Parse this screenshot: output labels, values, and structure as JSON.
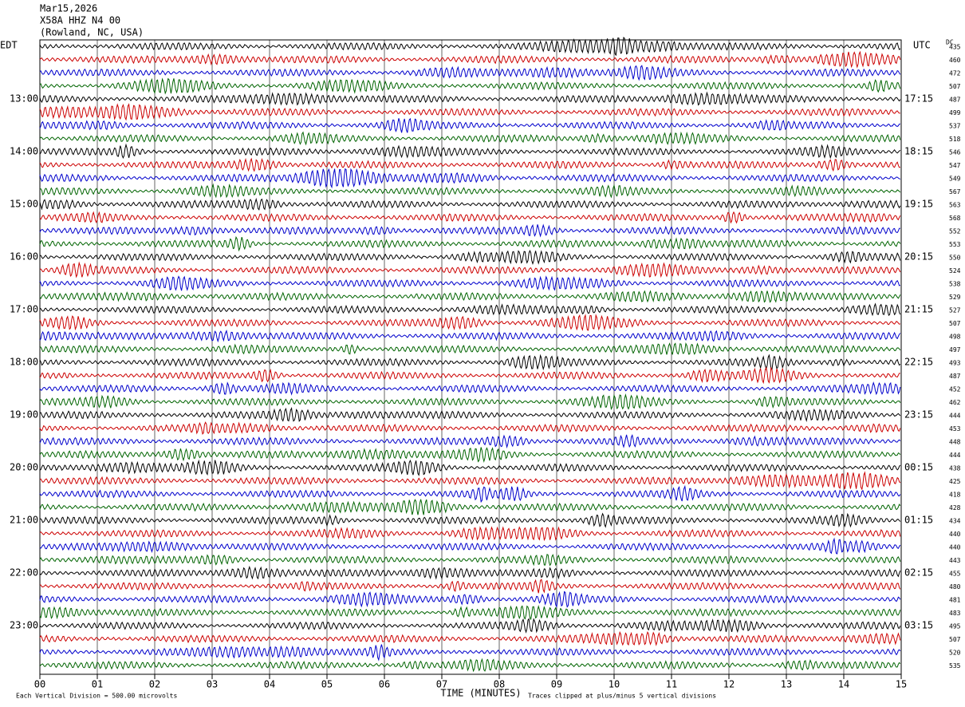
{
  "chart_data": {
    "type": "helicorder",
    "header": [
      "Mar15,2026",
      "X58A HHZ N4 00",
      "(Rowland, NC, USA)"
    ],
    "left_axis_label": "EDT",
    "right_axis_label": "UTC",
    "left_times": [
      "13:00",
      "14:00",
      "15:00",
      "16:00",
      "17:00",
      "18:00",
      "19:00",
      "20:00",
      "21:00",
      "22:00",
      "23:00"
    ],
    "right_times": [
      "17:15",
      "18:15",
      "19:15",
      "20:15",
      "21:15",
      "22:15",
      "23:15",
      "00:15",
      "01:15",
      "02:15",
      "03:15"
    ],
    "dc_label": "DC",
    "dc_values": [
      435,
      460,
      472,
      507,
      487,
      499,
      537,
      518,
      546,
      547,
      549,
      567,
      563,
      568,
      552,
      553,
      550,
      524,
      538,
      529,
      527,
      507,
      498,
      497,
      493,
      487,
      452,
      462,
      444,
      453,
      448,
      444,
      438,
      425,
      418,
      428,
      434,
      440,
      440,
      443,
      455,
      480,
      481,
      483,
      495,
      507,
      520,
      535
    ],
    "trace_colors": [
      "#000000",
      "#cc0000",
      "#0000cc",
      "#006400"
    ],
    "xlim": [
      0,
      15
    ],
    "xticks": [
      {
        "value": 0,
        "label": "00"
      },
      {
        "value": 1,
        "label": "01"
      },
      {
        "value": 2,
        "label": "02"
      },
      {
        "value": 3,
        "label": "03"
      },
      {
        "value": 4,
        "label": "04"
      },
      {
        "value": 5,
        "label": "05"
      },
      {
        "value": 6,
        "label": "06"
      },
      {
        "value": 7,
        "label": "07"
      },
      {
        "value": 8,
        "label": "08"
      },
      {
        "value": 9,
        "label": "09"
      },
      {
        "value": 10,
        "label": "10"
      },
      {
        "value": 11,
        "label": "11"
      },
      {
        "value": 12,
        "label": "12"
      },
      {
        "value": 13,
        "label": "13"
      },
      {
        "value": 14,
        "label": "14"
      },
      {
        "value": 15,
        "label": "15"
      }
    ],
    "x_axis_label": "TIME (MINUTES)",
    "scale_note": "Each Vertical Division =  500.00 microvolts",
    "clip_note": "Traces clipped at plus/minus 5 vertical divisions"
  }
}
